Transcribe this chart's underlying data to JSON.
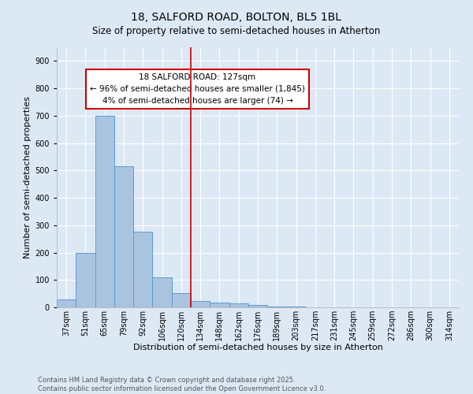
{
  "title": "18, SALFORD ROAD, BOLTON, BL5 1BL",
  "subtitle": "Size of property relative to semi-detached houses in Atherton",
  "xlabel": "Distribution of semi-detached houses by size in Atherton",
  "ylabel": "Number of semi-detached properties",
  "categories": [
    "37sqm",
    "51sqm",
    "65sqm",
    "79sqm",
    "92sqm",
    "106sqm",
    "120sqm",
    "134sqm",
    "148sqm",
    "162sqm",
    "176sqm",
    "189sqm",
    "203sqm",
    "217sqm",
    "231sqm",
    "245sqm",
    "259sqm",
    "272sqm",
    "286sqm",
    "300sqm",
    "314sqm"
  ],
  "values": [
    30,
    200,
    700,
    515,
    275,
    108,
    52,
    22,
    18,
    14,
    8,
    4,
    2,
    1,
    0,
    0,
    0,
    0,
    0,
    0,
    0
  ],
  "bar_color": "#aac4e0",
  "bar_edge_color": "#5b9bd5",
  "vline_x": 6.5,
  "vline_color": "#cc0000",
  "annotation_text": "18 SALFORD ROAD: 127sqm\n← 96% of semi-detached houses are smaller (1,845)\n4% of semi-detached houses are larger (74) →",
  "annotation_box_color": "#ffffff",
  "annotation_box_edge": "#cc0000",
  "ylim": [
    0,
    950
  ],
  "yticks": [
    0,
    100,
    200,
    300,
    400,
    500,
    600,
    700,
    800,
    900
  ],
  "background_color": "#dde8f5",
  "plot_bg_color": "#dde8f5",
  "footer_text": "Contains HM Land Registry data © Crown copyright and database right 2025.\nContains public sector information licensed under the Open Government Licence v3.0.",
  "title_fontsize": 10,
  "subtitle_fontsize": 8.5,
  "label_fontsize": 8,
  "tick_fontsize": 7,
  "footer_fontsize": 6
}
